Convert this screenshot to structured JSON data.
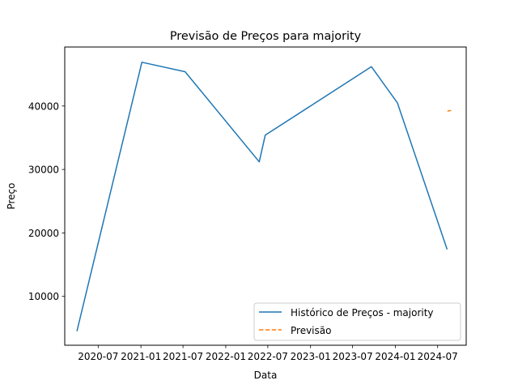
{
  "chart_data": {
    "type": "line",
    "title": "Previsão de Preços para majority",
    "xlabel": "Data",
    "ylabel": "Preço",
    "x_axis": "date",
    "xlim": [
      "2020-02-08",
      "2024-11-01"
    ],
    "ylim": [
      2300,
      49300
    ],
    "xticks": [
      {
        "date": "2020-07-01",
        "label": "2020-07"
      },
      {
        "date": "2021-01-01",
        "label": "2021-01"
      },
      {
        "date": "2021-07-01",
        "label": "2021-07"
      },
      {
        "date": "2022-01-01",
        "label": "2022-01"
      },
      {
        "date": "2022-07-01",
        "label": "2022-07"
      },
      {
        "date": "2023-01-01",
        "label": "2023-01"
      },
      {
        "date": "2023-07-01",
        "label": "2023-07"
      },
      {
        "date": "2024-01-01",
        "label": "2024-01"
      },
      {
        "date": "2024-07-01",
        "label": "2024-07"
      }
    ],
    "yticks": [
      10000,
      20000,
      30000,
      40000
    ],
    "grid": false,
    "legend_position": "lower right",
    "series": [
      {
        "name": "Histórico de Preços - majority",
        "color": "#1f77b4",
        "style": "solid",
        "points": [
          {
            "x": "2020-04-01",
            "y": 4600
          },
          {
            "x": "2021-01-05",
            "y": 46900
          },
          {
            "x": "2021-07-10",
            "y": 45400
          },
          {
            "x": "2022-05-25",
            "y": 31200
          },
          {
            "x": "2022-06-20",
            "y": 35400
          },
          {
            "x": "2023-09-20",
            "y": 46200
          },
          {
            "x": "2024-01-10",
            "y": 40500
          },
          {
            "x": "2024-08-10",
            "y": 17500
          }
        ]
      },
      {
        "name": "Previsão",
        "color": "#ff7f0e",
        "style": "dashed",
        "points": [
          {
            "x": "2024-08-12",
            "y": 39200
          },
          {
            "x": "2024-08-28",
            "y": 39300
          }
        ]
      }
    ]
  }
}
